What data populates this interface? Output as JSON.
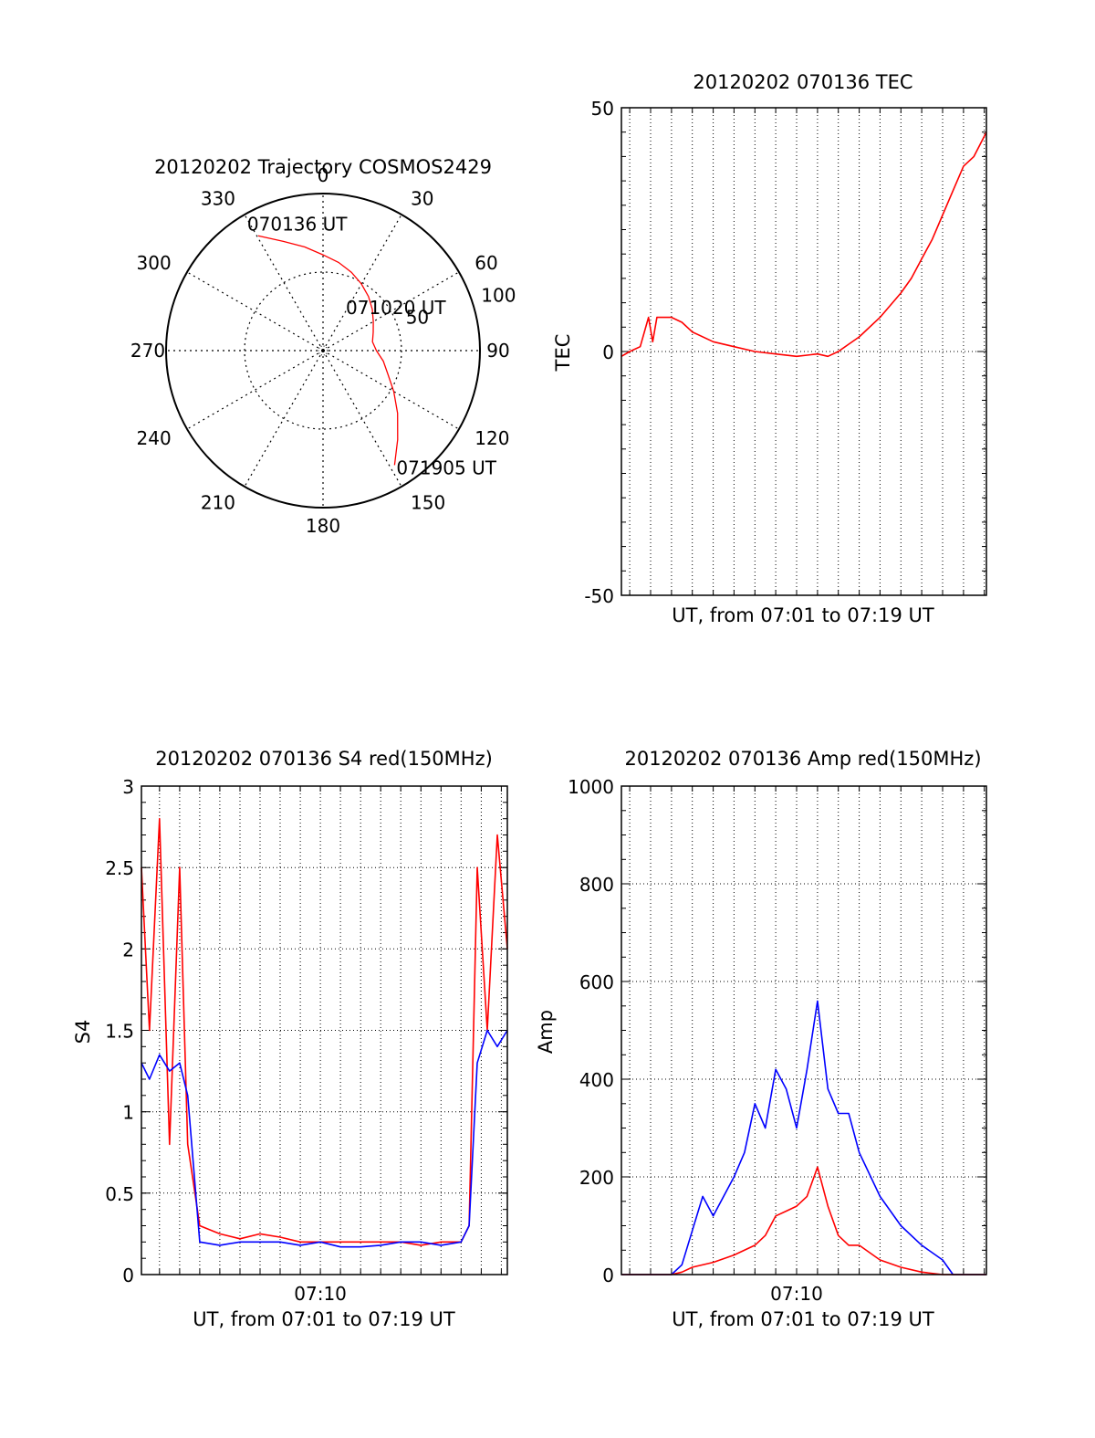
{
  "chart_data": [
    {
      "id": "trajectory",
      "type": "polar",
      "title": "20120202 Trajectory COSMOS2429",
      "angle_labels": [
        "0",
        "30",
        "60",
        "90",
        "120",
        "150",
        "180",
        "210",
        "240",
        "270",
        "300",
        "330"
      ],
      "radius_labels": [
        "50",
        "100"
      ],
      "r_max": 100,
      "grid": true,
      "track_color": "#ff0000",
      "track": {
        "azimuth_deg": [
          330.5,
          340,
          350,
          0,
          10,
          20,
          30,
          40,
          50,
          60,
          70,
          80,
          90,
          100,
          110,
          120,
          130,
          140,
          148
        ],
        "elevation_deg": [
          84,
          74,
          67,
          61,
          57,
          53,
          49,
          45,
          41,
          37,
          34,
          32,
          34,
          39,
          44,
          52,
          62,
          74,
          86
        ]
      },
      "annotations": [
        {
          "text": "070136 UT"
        },
        {
          "text": "071020 UT"
        },
        {
          "text": "071905 UT"
        }
      ]
    },
    {
      "id": "tec",
      "type": "line",
      "title": "20120202 070136 TEC",
      "xlabel": "UT, from 07:01 to 07:19 UT",
      "ylabel": "TEC",
      "xlim_min": [
        1.6,
        19.1
      ],
      "ylim": [
        -50,
        50
      ],
      "yticks": [
        "50",
        "0",
        "-50"
      ],
      "series": [
        {
          "color": "#ff0000",
          "x": [
            1.6,
            2.0,
            2.5,
            2.9,
            3.1,
            3.3,
            3.5,
            4.0,
            4.5,
            5.0,
            6.0,
            7.0,
            8.0,
            9.0,
            10.0,
            11.0,
            11.5,
            12.0,
            12.5,
            13.0,
            14.0,
            15.0,
            15.5,
            16.0,
            16.5,
            17.0,
            17.5,
            18.0,
            18.5,
            19.1
          ],
          "y": [
            -1,
            0,
            1,
            7,
            2,
            7,
            7,
            7,
            6,
            4,
            2,
            1,
            0,
            -0.5,
            -1,
            -0.5,
            -1,
            0,
            1.5,
            3,
            7,
            12,
            15,
            19,
            23,
            28,
            33,
            38,
            40,
            45
          ]
        }
      ]
    },
    {
      "id": "s4",
      "type": "line",
      "title": "20120202 070136 S4 red(150MHz)",
      "xlabel": "UT, from 07:01 to 07:19 UT",
      "ylabel": "S4",
      "xtick_labels": [
        "07:10"
      ],
      "xlim_min": [
        1.1,
        19.3
      ],
      "ylim": [
        0,
        3
      ],
      "yticks": [
        "0",
        "0.5",
        "1",
        "1.5",
        "2",
        "2.5",
        "3"
      ],
      "series": [
        {
          "color": "#ff0000",
          "x": [
            1.1,
            1.5,
            2.0,
            2.5,
            3.0,
            3.4,
            4.0,
            5.0,
            6.0,
            7.0,
            8.0,
            9.0,
            10.0,
            11.0,
            12.0,
            13.0,
            14.0,
            15.0,
            16.0,
            17.0,
            17.4,
            17.8,
            18.3,
            18.8,
            19.3
          ],
          "y": [
            2.5,
            1.5,
            2.8,
            0.8,
            2.5,
            0.8,
            0.3,
            0.25,
            0.22,
            0.25,
            0.23,
            0.2,
            0.2,
            0.2,
            0.2,
            0.2,
            0.2,
            0.18,
            0.2,
            0.2,
            0.3,
            2.5,
            1.5,
            2.7,
            2.0
          ]
        },
        {
          "color": "#0000ff",
          "x": [
            1.1,
            1.5,
            2.0,
            2.5,
            3.0,
            3.4,
            4.0,
            5.0,
            6.0,
            7.0,
            8.0,
            9.0,
            10.0,
            11.0,
            12.0,
            13.0,
            14.0,
            15.0,
            16.0,
            17.0,
            17.4,
            17.8,
            18.3,
            18.8,
            19.3
          ],
          "y": [
            1.3,
            1.2,
            1.35,
            1.25,
            1.3,
            1.1,
            0.2,
            0.18,
            0.2,
            0.2,
            0.2,
            0.18,
            0.2,
            0.17,
            0.17,
            0.18,
            0.2,
            0.2,
            0.18,
            0.2,
            0.3,
            1.3,
            1.5,
            1.4,
            1.5
          ]
        }
      ]
    },
    {
      "id": "amp",
      "type": "line",
      "title": "20120202 070136 Amp red(150MHz)",
      "xlabel": "UT, from 07:01 to 07:19 UT",
      "ylabel": "Amp",
      "xtick_labels": [
        "07:10"
      ],
      "xlim_min": [
        1.6,
        19.1
      ],
      "ylim": [
        0,
        1000
      ],
      "yticks": [
        "0",
        "200",
        "400",
        "600",
        "800",
        "1000"
      ],
      "series": [
        {
          "color": "#0000ff",
          "x": [
            1.6,
            3.0,
            4.0,
            4.5,
            5.0,
            5.5,
            6.0,
            7.0,
            7.5,
            8.0,
            8.5,
            9.0,
            9.5,
            10.0,
            10.5,
            11.0,
            11.5,
            12.0,
            12.5,
            13.0,
            14.0,
            15.0,
            16.0,
            17.0,
            17.5,
            19.1
          ],
          "y": [
            0,
            0,
            0,
            20,
            90,
            160,
            120,
            200,
            250,
            350,
            300,
            420,
            380,
            300,
            420,
            560,
            380,
            330,
            330,
            250,
            160,
            100,
            60,
            30,
            0,
            0
          ]
        },
        {
          "color": "#ff0000",
          "x": [
            1.6,
            3.0,
            4.0,
            4.5,
            5.0,
            6.0,
            7.0,
            8.0,
            8.5,
            9.0,
            9.5,
            10.0,
            10.5,
            11.0,
            11.5,
            12.0,
            12.5,
            13.0,
            14.0,
            15.0,
            16.0,
            17.0,
            19.1
          ],
          "y": [
            0,
            0,
            0,
            5,
            15,
            25,
            40,
            60,
            80,
            120,
            130,
            140,
            160,
            220,
            140,
            80,
            60,
            60,
            30,
            15,
            5,
            0,
            0
          ]
        }
      ]
    }
  ]
}
